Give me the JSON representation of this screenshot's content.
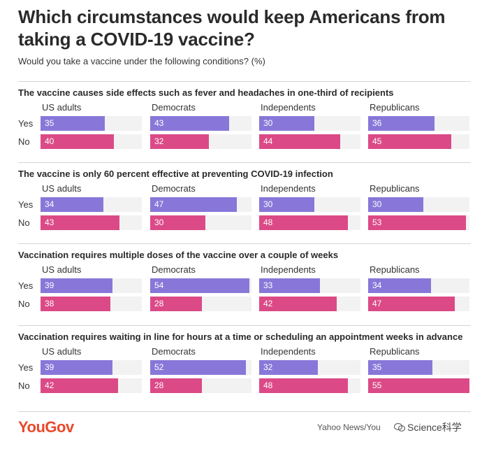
{
  "title": "Which circumstances would keep Americans from taking a COVID-19 vaccine?",
  "subtitle": "Would you take a vaccine under the following conditions? (%)",
  "footer": {
    "logo": "YouGov",
    "source": "Yahoo News/You",
    "watermark": "Science科学"
  },
  "colors": {
    "yes": "#8877d9",
    "no": "#db4a86",
    "track": "#f2f2f2",
    "logo": "#e8492b"
  },
  "chart_data": {
    "type": "bar",
    "orientation": "horizontal",
    "groups": [
      "US adults",
      "Democrats",
      "Independents",
      "Republicans"
    ],
    "series_labels": [
      "Yes",
      "No"
    ],
    "xlim": [
      0,
      55
    ],
    "panels": [
      {
        "title": "The vaccine causes side effects such as fever and headaches in one-third of recipients",
        "yes": [
          35,
          43,
          30,
          36
        ],
        "no": [
          40,
          32,
          44,
          45
        ]
      },
      {
        "title": "The vaccine is only 60 percent effective at preventing COVID-19 infection",
        "yes": [
          34,
          47,
          30,
          30
        ],
        "no": [
          43,
          30,
          48,
          53
        ]
      },
      {
        "title": "Vaccination requires multiple doses of the vaccine over a couple of weeks",
        "yes": [
          39,
          54,
          33,
          34
        ],
        "no": [
          38,
          28,
          42,
          47
        ]
      },
      {
        "title": "Vaccination requires waiting in line for hours at a time or scheduling an appointment weeks in advance",
        "yes": [
          39,
          52,
          32,
          35
        ],
        "no": [
          42,
          28,
          48,
          55
        ]
      }
    ]
  }
}
